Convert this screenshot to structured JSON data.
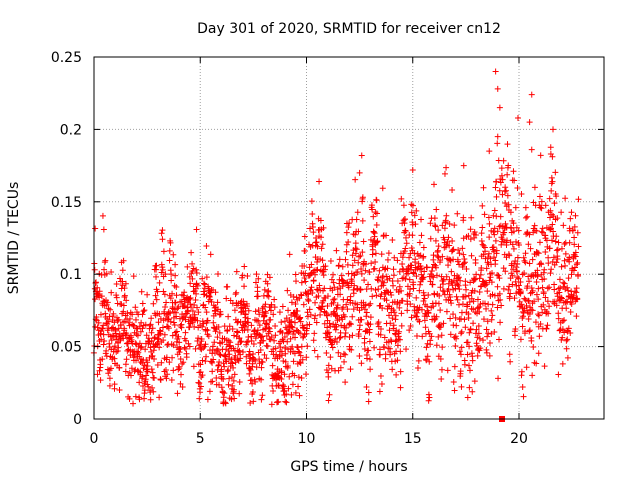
{
  "chart_data": {
    "type": "scatter",
    "title": "Day 301 of 2020, SRMTID for receiver cn12",
    "xlabel": "GPS time / hours",
    "ylabel": "SRMTID / TECUs",
    "xlim": [
      0,
      24
    ],
    "ylim": [
      0,
      0.25
    ],
    "x_ticks": [
      0,
      5,
      10,
      15,
      20
    ],
    "x_tick_labels": [
      "0",
      "5",
      "10",
      "15",
      "20"
    ],
    "y_ticks": [
      0,
      0.05,
      0.1,
      0.15,
      0.2,
      0.25
    ],
    "y_tick_labels": [
      "0",
      "0.05",
      "0.1",
      "0.15",
      "0.2",
      "0.25"
    ],
    "grid": true,
    "marker": "plus",
    "color": "#ff0000",
    "point_count_approx": 2500,
    "trend": [
      {
        "x": 0.0,
        "center": 0.085,
        "spread": 0.03
      },
      {
        "x": 0.5,
        "center": 0.08,
        "spread": 0.03
      },
      {
        "x": 1.0,
        "center": 0.055,
        "spread": 0.022
      },
      {
        "x": 2.0,
        "center": 0.06,
        "spread": 0.025
      },
      {
        "x": 3.0,
        "center": 0.065,
        "spread": 0.028
      },
      {
        "x": 4.0,
        "center": 0.062,
        "spread": 0.025
      },
      {
        "x": 5.0,
        "center": 0.06,
        "spread": 0.025
      },
      {
        "x": 6.0,
        "center": 0.065,
        "spread": 0.025
      },
      {
        "x": 7.0,
        "center": 0.06,
        "spread": 0.025
      },
      {
        "x": 8.0,
        "center": 0.058,
        "spread": 0.025
      },
      {
        "x": 9.0,
        "center": 0.052,
        "spread": 0.022
      },
      {
        "x": 10.0,
        "center": 0.06,
        "spread": 0.025
      },
      {
        "x": 11.0,
        "center": 0.075,
        "spread": 0.03
      },
      {
        "x": 12.0,
        "center": 0.08,
        "spread": 0.03
      },
      {
        "x": 13.0,
        "center": 0.085,
        "spread": 0.032
      },
      {
        "x": 14.0,
        "center": 0.085,
        "spread": 0.032
      },
      {
        "x": 15.0,
        "center": 0.085,
        "spread": 0.032
      },
      {
        "x": 16.0,
        "center": 0.09,
        "spread": 0.032
      },
      {
        "x": 17.0,
        "center": 0.1,
        "spread": 0.035
      },
      {
        "x": 18.0,
        "center": 0.105,
        "spread": 0.035
      },
      {
        "x": 19.0,
        "center": 0.11,
        "spread": 0.038
      },
      {
        "x": 20.0,
        "center": 0.105,
        "spread": 0.035
      },
      {
        "x": 21.0,
        "center": 0.1,
        "spread": 0.035
      },
      {
        "x": 22.0,
        "center": 0.095,
        "spread": 0.032
      },
      {
        "x": 22.8,
        "center": 0.09,
        "spread": 0.03
      }
    ],
    "notable_points": [
      {
        "x": 18.9,
        "y": 0.24
      },
      {
        "x": 19.0,
        "y": 0.228
      },
      {
        "x": 19.1,
        "y": 0.215
      },
      {
        "x": 19.0,
        "y": 0.195
      },
      {
        "x": 20.6,
        "y": 0.224
      },
      {
        "x": 20.5,
        "y": 0.205
      },
      {
        "x": 20.6,
        "y": 0.186
      },
      {
        "x": 21.6,
        "y": 0.2
      },
      {
        "x": 21.5,
        "y": 0.183
      },
      {
        "x": 12.6,
        "y": 0.182
      },
      {
        "x": 12.5,
        "y": 0.17
      },
      {
        "x": 15.0,
        "y": 0.172
      },
      {
        "x": 16.0,
        "y": 0.162
      },
      {
        "x": 17.4,
        "y": 0.175
      },
      {
        "x": 18.6,
        "y": 0.185
      },
      {
        "x": 9.0,
        "y": 0.012
      },
      {
        "x": 1.2,
        "y": 0.02
      },
      {
        "x": 9.5,
        "y": 0.018
      }
    ],
    "outlier_marker": {
      "x": 19.2,
      "y": 0.0,
      "shape": "square"
    }
  }
}
